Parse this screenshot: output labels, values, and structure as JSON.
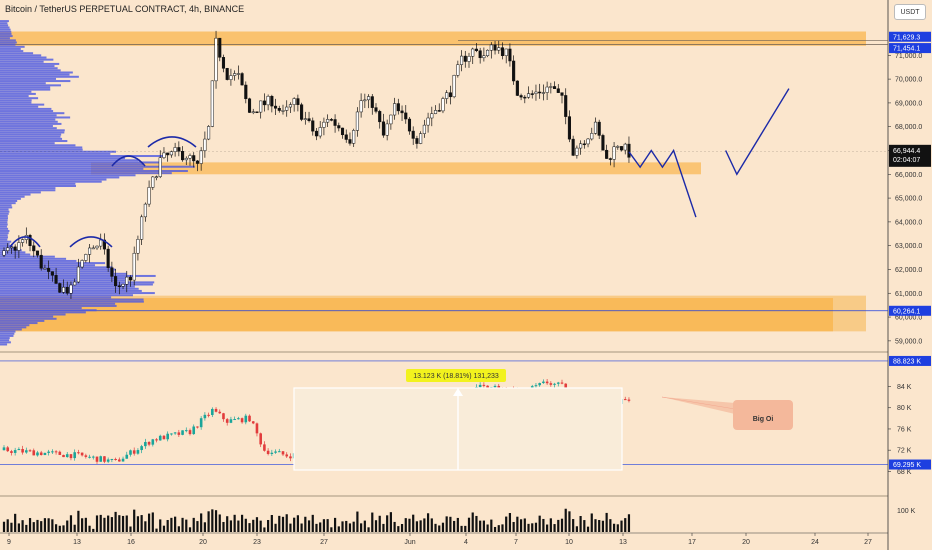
{
  "title": "Bitcoin / TetherUS PERPETUAL CONTRACT, 4h, BINANCE",
  "unit_badge": "USDT",
  "colors": {
    "background": "#fbe6cd",
    "zone": "#f9b54e",
    "zone_light": "#f7c57a",
    "bull": "#1aa59a",
    "bear": "#e23c3c",
    "volume_profile": "#4b57e2",
    "drawing": "#1c2aa8",
    "annotation": "#e53935",
    "annotation_bg": "#f4b89b",
    "measure_bg": "#f2f21e",
    "blue_tag": "#1e3fe0",
    "dark_tag": "#111111"
  },
  "price_axis": {
    "ticks": [
      "71,000.0",
      "70,000.0",
      "69,000.0",
      "68,000.0",
      "67,000.0",
      "66,000.0",
      "65,000.0",
      "64,000.0",
      "63,000.0",
      "62,000.0",
      "61,000.0",
      "60,000.0",
      "59,000.0"
    ],
    "tags": {
      "top_high": "71,629.3",
      "range_high": "71,454.1",
      "current_price": "66,944.4",
      "countdown": "02:04:07",
      "range_low": "60,264.1"
    }
  },
  "oi_axis": {
    "ticks": [
      "84 K",
      "80 K",
      "76 K",
      "72 K",
      "68 K"
    ],
    "tags": {
      "top": "88.823 K",
      "bottom": "69.295 K"
    }
  },
  "volume_axis": {
    "ticks": [
      "100 K"
    ]
  },
  "time_axis": {
    "labels": [
      "9",
      "13",
      "16",
      "20",
      "23",
      "27",
      "Jun",
      "4",
      "7",
      "10",
      "13",
      "17",
      "20",
      "24",
      "27"
    ]
  },
  "measure_label": "13.123 K (18.81%) 131,233",
  "annotation": "Big Oi",
  "chart_data": {
    "type": "candlestick",
    "title": "Bitcoin / TetherUS PERPETUAL CONTRACT, 4h, BINANCE",
    "price_range": [
      58700,
      72400
    ],
    "oi_range": [
      66000,
      89000
    ],
    "key_levels": {
      "resistance_zone": [
        71400,
        72000
      ],
      "support_zone": [
        66000,
        66500
      ],
      "demand_zone": [
        59400,
        60900
      ]
    },
    "close_path": [
      [
        0,
        62600
      ],
      [
        6,
        63300
      ],
      [
        10,
        62200
      ],
      [
        14,
        61300
      ],
      [
        18,
        61100
      ],
      [
        22,
        62800
      ],
      [
        26,
        63100
      ],
      [
        30,
        61200
      ],
      [
        34,
        61700
      ],
      [
        38,
        64800
      ],
      [
        42,
        66600
      ],
      [
        46,
        66900
      ],
      [
        49,
        66800
      ],
      [
        52,
        66300
      ],
      [
        55,
        67900
      ],
      [
        57,
        71500
      ],
      [
        60,
        70200
      ],
      [
        63,
        70100
      ],
      [
        66,
        68600
      ],
      [
        69,
        68900
      ],
      [
        72,
        69100
      ],
      [
        75,
        68500
      ],
      [
        78,
        69000
      ],
      [
        81,
        68300
      ],
      [
        84,
        67600
      ],
      [
        87,
        68400
      ],
      [
        90,
        68000
      ],
      [
        93,
        67500
      ],
      [
        96,
        69100
      ],
      [
        99,
        69000
      ],
      [
        102,
        67600
      ],
      [
        105,
        68800
      ],
      [
        108,
        68200
      ],
      [
        111,
        67500
      ],
      [
        114,
        68400
      ],
      [
        117,
        68900
      ],
      [
        120,
        69500
      ],
      [
        123,
        70800
      ],
      [
        126,
        71200
      ],
      [
        129,
        71000
      ],
      [
        132,
        71400
      ],
      [
        135,
        71100
      ],
      [
        138,
        69500
      ],
      [
        141,
        69300
      ],
      [
        144,
        69500
      ],
      [
        147,
        69700
      ],
      [
        150,
        69100
      ],
      [
        153,
        67000
      ],
      [
        156,
        67500
      ],
      [
        159,
        68000
      ],
      [
        162,
        66600
      ],
      [
        165,
        67300
      ],
      [
        168,
        66900
      ]
    ],
    "oi_path": [
      [
        0,
        72000
      ],
      [
        20,
        71000
      ],
      [
        30,
        69800
      ],
      [
        40,
        74000
      ],
      [
        50,
        75500
      ],
      [
        56,
        79500
      ],
      [
        60,
        77500
      ],
      [
        66,
        78000
      ],
      [
        70,
        72000
      ],
      [
        76,
        71000
      ],
      [
        86,
        71500
      ],
      [
        96,
        74000
      ],
      [
        106,
        75000
      ],
      [
        114,
        77000
      ],
      [
        118,
        79500
      ],
      [
        122,
        82000
      ],
      [
        128,
        84000
      ],
      [
        134,
        83500
      ],
      [
        140,
        83000
      ],
      [
        146,
        84800
      ],
      [
        150,
        84000
      ],
      [
        154,
        81000
      ],
      [
        158,
        82000
      ],
      [
        162,
        80500
      ],
      [
        168,
        81500
      ]
    ],
    "projection_path": [
      [
        168,
        66944
      ],
      [
        171,
        66300
      ],
      [
        174,
        67000
      ],
      [
        177,
        66300
      ],
      [
        180,
        67000
      ],
      [
        186,
        64200
      ]
    ],
    "projection_path_2": [
      [
        194,
        67000
      ],
      [
        197,
        66000
      ],
      [
        211,
        69600
      ]
    ]
  }
}
